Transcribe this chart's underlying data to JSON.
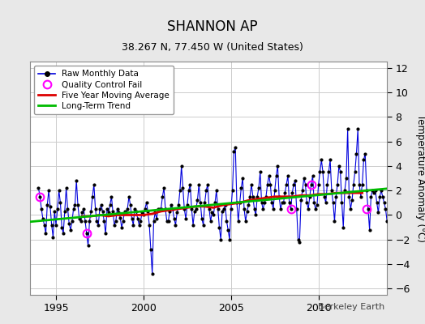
{
  "title": "SHANNON AP",
  "subtitle": "38.267 N, 77.450 W (United States)",
  "ylabel": "Temperature Anomaly (°C)",
  "attribution": "Berkeley Earth",
  "xlim": [
    1993.5,
    2013.9
  ],
  "ylim": [
    -6.5,
    12.5
  ],
  "yticks": [
    -6,
    -4,
    -2,
    0,
    2,
    4,
    6,
    8,
    10,
    12
  ],
  "xticks": [
    1995,
    2000,
    2005,
    2010
  ],
  "fig_bg_color": "#e8e8e8",
  "plot_bg_color": "#ffffff",
  "raw_color": "#0000dd",
  "moving_avg_color": "#dd0000",
  "trend_color": "#00bb00",
  "qc_fail_color": "#ff00ff",
  "grid_color": "#cccccc",
  "raw_data_x": [
    1994.0,
    1994.083,
    1994.167,
    1994.25,
    1994.333,
    1994.417,
    1994.5,
    1994.583,
    1994.667,
    1994.75,
    1994.833,
    1994.917,
    1995.0,
    1995.083,
    1995.167,
    1995.25,
    1995.333,
    1995.417,
    1995.5,
    1995.583,
    1995.667,
    1995.75,
    1995.833,
    1995.917,
    1996.0,
    1996.083,
    1996.167,
    1996.25,
    1996.333,
    1996.417,
    1996.5,
    1996.583,
    1996.667,
    1996.75,
    1996.833,
    1996.917,
    1997.0,
    1997.083,
    1997.167,
    1997.25,
    1997.333,
    1997.417,
    1997.5,
    1997.583,
    1997.667,
    1997.75,
    1997.833,
    1997.917,
    1998.0,
    1998.083,
    1998.167,
    1998.25,
    1998.333,
    1998.417,
    1998.5,
    1998.583,
    1998.667,
    1998.75,
    1998.833,
    1998.917,
    1999.0,
    1999.083,
    1999.167,
    1999.25,
    1999.333,
    1999.417,
    1999.5,
    1999.583,
    1999.667,
    1999.75,
    1999.833,
    1999.917,
    2000.0,
    2000.083,
    2000.167,
    2000.25,
    2000.333,
    2000.417,
    2000.5,
    2000.583,
    2000.667,
    2000.75,
    2000.833,
    2000.917,
    2001.0,
    2001.083,
    2001.167,
    2001.25,
    2001.333,
    2001.417,
    2001.5,
    2001.583,
    2001.667,
    2001.75,
    2001.833,
    2001.917,
    2002.0,
    2002.083,
    2002.167,
    2002.25,
    2002.333,
    2002.417,
    2002.5,
    2002.583,
    2002.667,
    2002.75,
    2002.833,
    2002.917,
    2003.0,
    2003.083,
    2003.167,
    2003.25,
    2003.333,
    2003.417,
    2003.5,
    2003.583,
    2003.667,
    2003.75,
    2003.833,
    2003.917,
    2004.0,
    2004.083,
    2004.167,
    2004.25,
    2004.333,
    2004.417,
    2004.5,
    2004.583,
    2004.667,
    2004.75,
    2004.833,
    2004.917,
    2005.0,
    2005.083,
    2005.167,
    2005.25,
    2005.333,
    2005.417,
    2005.5,
    2005.583,
    2005.667,
    2005.75,
    2005.833,
    2005.917,
    2006.0,
    2006.083,
    2006.167,
    2006.25,
    2006.333,
    2006.417,
    2006.5,
    2006.583,
    2006.667,
    2006.75,
    2006.833,
    2006.917,
    2007.0,
    2007.083,
    2007.167,
    2007.25,
    2007.333,
    2007.417,
    2007.5,
    2007.583,
    2007.667,
    2007.75,
    2007.833,
    2007.917,
    2008.0,
    2008.083,
    2008.167,
    2008.25,
    2008.333,
    2008.417,
    2008.5,
    2008.583,
    2008.667,
    2008.75,
    2008.833,
    2008.917,
    2009.0,
    2009.083,
    2009.167,
    2009.25,
    2009.333,
    2009.417,
    2009.5,
    2009.583,
    2009.667,
    2009.75,
    2009.833,
    2009.917,
    2010.0,
    2010.083,
    2010.167,
    2010.25,
    2010.333,
    2010.417,
    2010.5,
    2010.583,
    2010.667,
    2010.75,
    2010.833,
    2010.917,
    2011.0,
    2011.083,
    2011.167,
    2011.25,
    2011.333,
    2011.417,
    2011.5,
    2011.583,
    2011.667,
    2011.75,
    2011.833,
    2011.917,
    2012.0,
    2012.083,
    2012.167,
    2012.25,
    2012.333,
    2012.417,
    2012.5,
    2012.583,
    2012.667,
    2012.75,
    2012.833,
    2012.917,
    2013.0,
    2013.083,
    2013.167,
    2013.25,
    2013.333,
    2013.417,
    2013.5,
    2013.583,
    2013.667,
    2013.75,
    2013.833,
    2013.917
  ],
  "raw_data_y": [
    2.2,
    1.5,
    0.5,
    -0.3,
    -0.8,
    -1.5,
    0.8,
    2.0,
    0.7,
    -0.8,
    -1.8,
    0.3,
    -0.8,
    0.5,
    2.0,
    1.0,
    -1.0,
    -1.5,
    0.3,
    2.2,
    0.5,
    -0.7,
    -1.2,
    -0.5,
    0.5,
    0.8,
    2.8,
    0.8,
    -0.3,
    -0.5,
    0.2,
    0.5,
    -0.5,
    -1.5,
    -2.5,
    -0.5,
    0.3,
    1.5,
    2.5,
    0.5,
    -0.5,
    -0.8,
    0.5,
    0.8,
    0.3,
    -0.5,
    -1.5,
    0.5,
    0.2,
    0.8,
    1.5,
    0.3,
    -0.8,
    -0.5,
    0.5,
    0.2,
    -0.2,
    -1.0,
    -0.5,
    0.3,
    0.2,
    0.5,
    1.5,
    0.8,
    -0.3,
    -0.8,
    0.5,
    0.3,
    -0.3,
    -0.8,
    -0.5,
    0.2,
    0.0,
    0.5,
    1.0,
    0.3,
    -0.8,
    -2.8,
    -4.8,
    -0.5,
    0.2,
    -0.3,
    0.5,
    0.5,
    0.5,
    1.5,
    2.2,
    0.5,
    -0.5,
    -0.5,
    0.3,
    0.8,
    0.5,
    -0.3,
    -0.8,
    0.2,
    0.8,
    2.0,
    4.0,
    2.2,
    0.5,
    -0.3,
    0.8,
    2.0,
    2.5,
    0.5,
    -0.8,
    0.3,
    0.5,
    1.2,
    2.5,
    1.0,
    -0.3,
    -0.8,
    1.0,
    2.0,
    2.5,
    0.5,
    -0.5,
    0.2,
    0.0,
    1.0,
    2.0,
    0.5,
    -1.0,
    -2.0,
    0.3,
    0.5,
    0.8,
    -0.5,
    -1.2,
    -2.0,
    0.5,
    2.0,
    5.2,
    5.5,
    1.0,
    -0.5,
    1.0,
    2.2,
    3.0,
    0.5,
    -0.5,
    0.3,
    0.8,
    1.5,
    2.5,
    1.5,
    0.5,
    0.0,
    1.5,
    2.2,
    3.5,
    1.0,
    0.5,
    1.0,
    1.5,
    2.5,
    3.2,
    2.5,
    1.0,
    0.5,
    2.0,
    3.2,
    4.0,
    1.5,
    0.5,
    1.0,
    1.0,
    1.8,
    2.5,
    3.2,
    1.0,
    0.5,
    1.8,
    2.5,
    2.8,
    0.5,
    -2.0,
    -2.2,
    1.2,
    2.0,
    3.0,
    2.5,
    1.0,
    0.5,
    1.5,
    2.5,
    3.2,
    1.0,
    0.5,
    0.8,
    2.5,
    3.5,
    4.5,
    3.5,
    1.5,
    1.0,
    2.5,
    3.5,
    4.5,
    2.0,
    1.0,
    -0.5,
    1.5,
    2.5,
    4.0,
    3.5,
    1.0,
    -1.0,
    2.0,
    3.0,
    7.0,
    1.5,
    0.5,
    1.2,
    2.5,
    3.5,
    5.0,
    7.0,
    2.5,
    1.5,
    2.5,
    4.5,
    5.0,
    2.0,
    0.5,
    -1.2,
    1.5,
    2.0,
    1.8,
    2.0,
    1.0,
    0.2,
    1.5,
    2.0,
    1.5,
    1.0,
    0.5,
    -0.5
  ],
  "qc_fail_x": [
    1994.083,
    1996.75,
    2008.417,
    2009.583,
    2012.75
  ],
  "qc_fail_y": [
    1.5,
    -1.5,
    0.5,
    2.5,
    0.5
  ],
  "trend_x": [
    1993.5,
    2013.9
  ],
  "trend_y": [
    -0.55,
    2.15
  ],
  "moving_avg_x": [
    1996.5,
    1997.0,
    1997.5,
    1998.0,
    1998.5,
    1999.0,
    1999.5,
    2000.0,
    2000.5,
    2001.0,
    2001.5,
    2002.0,
    2002.5,
    2003.0,
    2003.5,
    2004.0,
    2004.5,
    2005.0,
    2005.5,
    2006.0,
    2006.5,
    2007.0,
    2007.5,
    2008.0,
    2008.5,
    2009.0,
    2009.5,
    2010.0,
    2010.5,
    2011.0,
    2011.5,
    2012.0,
    2012.5
  ],
  "moving_avg_y": [
    -0.1,
    -0.1,
    0.0,
    -0.1,
    0.0,
    0.0,
    0.0,
    0.0,
    0.1,
    0.3,
    0.4,
    0.5,
    0.6,
    0.7,
    0.7,
    0.6,
    0.8,
    0.9,
    1.0,
    1.2,
    1.3,
    1.4,
    1.5,
    1.5,
    1.5,
    1.6,
    1.6,
    1.7,
    1.7,
    1.8,
    1.8,
    1.8,
    1.8
  ]
}
